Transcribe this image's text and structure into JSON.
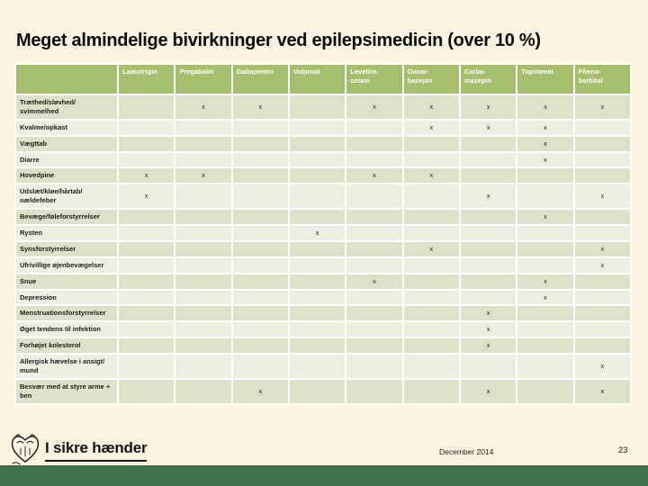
{
  "slide": {
    "title": "Meget almindelige bivirkninger ved epilepsimedicin (over 10 %)",
    "footer": {
      "logo_text": "I sikre hænder",
      "date": "December 2014",
      "page_number": "23"
    }
  },
  "colors": {
    "background": "#faf3e0",
    "header-green": "#a5bf6c",
    "band-dark": "#dbe2c8",
    "band-light": "#edefe2",
    "footer-green": "#3d7147",
    "header-text": "#ffffff",
    "body-text": "#1c1c1c"
  },
  "icons": {
    "logo": "hands-heart-logo-icon"
  },
  "chart_data": {
    "type": "table",
    "title": "Meget almindelige bivirkninger ved epilepsimedicin (over 10 %)",
    "mark_symbol": "x",
    "layout": "banded rows, green header band, mark 'x' = side effect occurs in over 10%",
    "columns": [
      "Lamotrigin",
      "Pregabalin",
      "Gabapentin",
      "Valproat",
      "Levetira-\ncetam",
      "Oxcar-\nbazepin",
      "Carba-\nmazepin",
      "Topiramat",
      "Pheno-\nbarbital"
    ],
    "rows": [
      {
        "label": "Træthed/sløvhed/\nsvimmelhed",
        "marks": [
          "",
          "x",
          "x",
          "",
          "x",
          "x",
          "x",
          "x",
          "x"
        ]
      },
      {
        "label": "Kvalme/opkast",
        "marks": [
          "",
          "",
          "",
          "",
          "",
          "x",
          "x",
          "x",
          ""
        ]
      },
      {
        "label": "Vægttab",
        "marks": [
          "",
          "",
          "",
          "",
          "",
          "",
          "",
          "x",
          ""
        ]
      },
      {
        "label": "Diarre",
        "marks": [
          "",
          "",
          "",
          "",
          "",
          "",
          "",
          "x",
          ""
        ]
      },
      {
        "label": "Hovedpine",
        "marks": [
          "x",
          "x",
          "",
          "",
          "x",
          "x",
          "",
          "",
          ""
        ]
      },
      {
        "label": "Udslæt/kløe/hårtab/\nnældefeber",
        "marks": [
          "x",
          "",
          "",
          "",
          "",
          "",
          "x",
          "",
          "x"
        ]
      },
      {
        "label": "Bevæge/føleforstyrrelser",
        "marks": [
          "",
          "",
          "",
          "",
          "",
          "",
          "",
          "x",
          ""
        ]
      },
      {
        "label": "Rysten",
        "marks": [
          "",
          "",
          "",
          "x",
          "",
          "",
          "",
          "",
          ""
        ]
      },
      {
        "label": "Synsforstyrrelser",
        "marks": [
          "",
          "",
          "",
          "",
          "",
          "x",
          "",
          "",
          "x"
        ]
      },
      {
        "label": "Ufrivillige øjenbevægelser",
        "marks": [
          "",
          "",
          "",
          "",
          "",
          "",
          "",
          "",
          "x"
        ]
      },
      {
        "label": "Snue",
        "marks": [
          "",
          "",
          "",
          "",
          "x",
          "",
          "",
          "x",
          ""
        ]
      },
      {
        "label": "Depression",
        "marks": [
          "",
          "",
          "",
          "",
          "",
          "",
          "",
          "x",
          ""
        ]
      },
      {
        "label": "Menstruationsforstyrrelser",
        "marks": [
          "",
          "",
          "",
          "",
          "",
          "",
          "x",
          "",
          ""
        ]
      },
      {
        "label": "Øget tendens til infektion",
        "marks": [
          "",
          "",
          "",
          "",
          "",
          "",
          "x",
          "",
          ""
        ]
      },
      {
        "label": "Forhøjet kolesterol",
        "marks": [
          "",
          "",
          "",
          "",
          "",
          "",
          "x",
          "",
          ""
        ]
      },
      {
        "label": "Allergisk hævelse i ansigt/\nmund",
        "marks": [
          "",
          "",
          "",
          "",
          "",
          "",
          "",
          "",
          "x"
        ]
      },
      {
        "label": "Besvær med at styre arme +\nben",
        "marks": [
          "",
          "",
          "x",
          "",
          "",
          "",
          "x",
          "",
          "x"
        ]
      }
    ]
  }
}
